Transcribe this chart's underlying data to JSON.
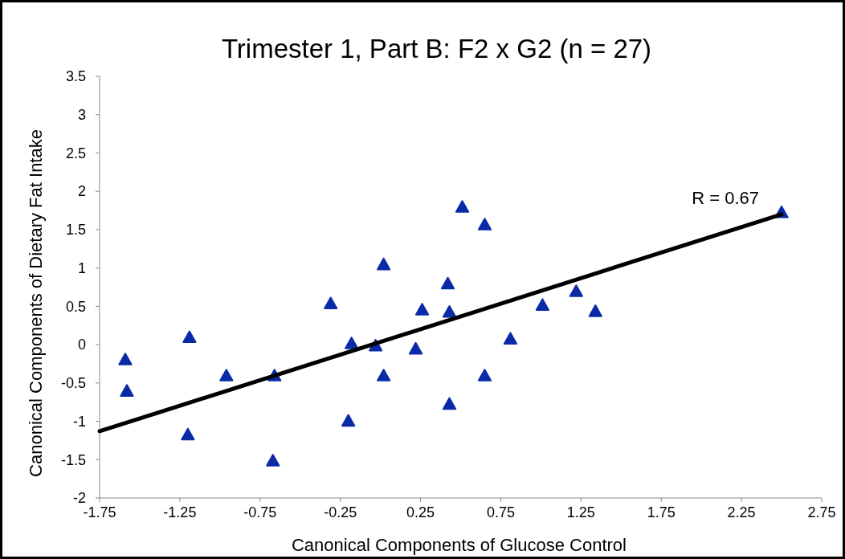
{
  "chart_data": {
    "type": "scatter",
    "title": "Trimester 1, Part B: F2 x G2 (n = 27)",
    "xlabel": "Canonical Components of Glucose Control",
    "ylabel": "Canonical Components of Dietary Fat Intake",
    "xlim": [
      -1.75,
      2.75
    ],
    "xticks": [
      -1.75,
      -1.25,
      -0.75,
      -0.25,
      0.25,
      0.75,
      1.25,
      1.75,
      2.25,
      2.75
    ],
    "ylim": [
      -2,
      3.5
    ],
    "yticks": [
      -2,
      -1.5,
      -1,
      -0.5,
      0,
      0.5,
      1,
      1.5,
      2,
      2.5,
      3,
      3.5
    ],
    "grid": false,
    "series": [
      {
        "marker": "triangle",
        "color": "#0a2aa8",
        "x": [
          -1.59,
          -1.58,
          -1.19,
          -1.2,
          -0.96,
          -0.66,
          -0.67,
          -0.31,
          -0.18,
          -0.2,
          -0.03,
          0.02,
          0.02,
          0.22,
          0.26,
          0.42,
          0.43,
          0.43,
          0.51,
          0.65,
          0.65,
          0.81,
          1.01,
          1.22,
          1.34,
          2.5
        ],
        "values": [
          -0.2,
          -0.61,
          0.09,
          -1.18,
          -0.41,
          -0.41,
          -1.52,
          0.53,
          0.01,
          -1.0,
          -0.02,
          1.04,
          -0.41,
          -0.06,
          0.45,
          0.79,
          0.42,
          -0.78,
          1.79,
          1.56,
          -0.41,
          0.07,
          0.51,
          0.69,
          0.43,
          1.72
        ]
      },
      {
        "type": "line",
        "color": "#000000",
        "x": [
          -1.75,
          2.5
        ],
        "values": [
          -1.13,
          1.7
        ]
      }
    ],
    "annotations": [
      "R = 0.67"
    ]
  }
}
